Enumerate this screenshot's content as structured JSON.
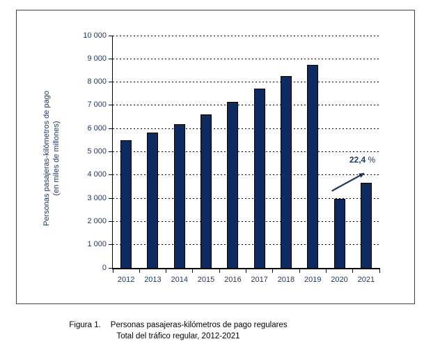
{
  "chart_data": {
    "type": "bar",
    "categories": [
      "2012",
      "2013",
      "2014",
      "2015",
      "2016",
      "2017",
      "2018",
      "2019",
      "2020",
      "2021"
    ],
    "values": [
      5500,
      5840,
      6190,
      6620,
      7140,
      7720,
      8250,
      8740,
      2980,
      3650
    ],
    "title": "",
    "xlabel": "",
    "ylabel_line1": "Personas pasajeras-kilómetros de pago",
    "ylabel_line2": "(en miles de millones)",
    "ylim": [
      0,
      10000
    ],
    "ytick_step": 1000,
    "yticks": [
      {
        "value": 0,
        "label": "0"
      },
      {
        "value": 1000,
        "label": "1 000"
      },
      {
        "value": 2000,
        "label": "2 000"
      },
      {
        "value": 3000,
        "label": "3 000"
      },
      {
        "value": 4000,
        "label": "4 000"
      },
      {
        "value": 5000,
        "label": "5 000"
      },
      {
        "value": 6000,
        "label": "6 000"
      },
      {
        "value": 7000,
        "label": "7 000"
      },
      {
        "value": 8000,
        "label": "8 000"
      },
      {
        "value": 9000,
        "label": "9 000"
      },
      {
        "value": 10000,
        "label": "10 000"
      }
    ],
    "grid": {
      "horizontal": true,
      "style": "dashed",
      "color": "#000000"
    },
    "legend": "none",
    "annotation": {
      "text_bold": "22,4",
      "text_regular": " %",
      "arrow_from_category": "2020",
      "arrow_to_category": "2021"
    },
    "colors": {
      "bar_fill": "#0e2a5e",
      "bar_border": "#000000",
      "axis_text": "#1f3864",
      "annotation_text": "#1f3864",
      "arrow": "#1f3864",
      "axis_line": "#000000"
    }
  },
  "caption": {
    "line1_prefix": "Figura 1.",
    "line1_text": "Personas pasajeras-kilómetros de pago regulares",
    "line2": "Total del tráfico regular, 2012-2021"
  }
}
